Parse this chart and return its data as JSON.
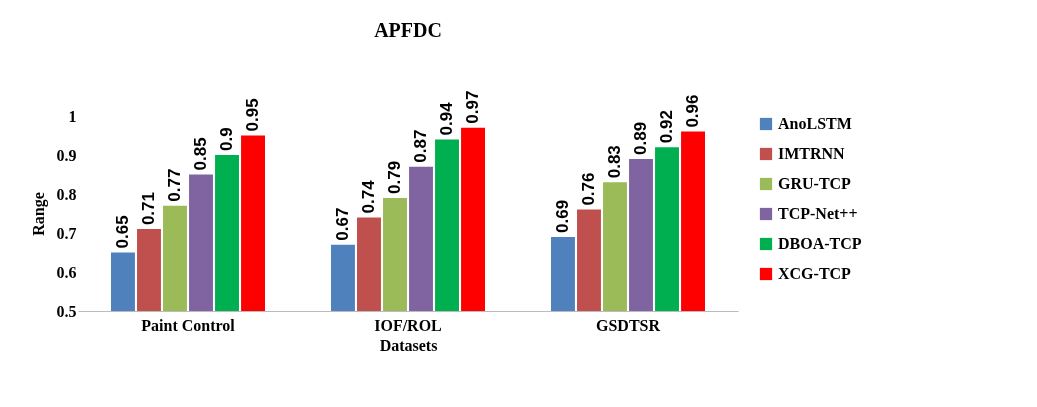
{
  "chart_data": {
    "type": "bar",
    "title": "APFDC",
    "xlabel": "Datasets",
    "ylabel": "Range",
    "categories": [
      "Paint Control",
      "IOF/ROL",
      "GSDTSR"
    ],
    "series": [
      {
        "name": "AnoLSTM",
        "color": "#4f81bd",
        "values": [
          0.65,
          0.67,
          0.69
        ]
      },
      {
        "name": "IMTRNN",
        "color": "#c0504d",
        "values": [
          0.71,
          0.74,
          0.76
        ]
      },
      {
        "name": "GRU-TCP",
        "color": "#9bbb59",
        "values": [
          0.77,
          0.79,
          0.83
        ]
      },
      {
        "name": "TCP-Net++",
        "color": "#8064a2",
        "values": [
          0.85,
          0.87,
          0.89
        ]
      },
      {
        "name": "DBOA-TCP",
        "color": "#00b050",
        "values": [
          0.9,
          0.94,
          0.92
        ]
      },
      {
        "name": "XCG-TCP",
        "color": "#ff0000",
        "values": [
          0.95,
          0.97,
          0.96
        ]
      }
    ],
    "ylim": [
      0.5,
      1
    ],
    "yticks": [
      0.5,
      0.6,
      0.7,
      0.8,
      0.9,
      1
    ],
    "data_labels": true,
    "grid": false,
    "legend": "right"
  }
}
